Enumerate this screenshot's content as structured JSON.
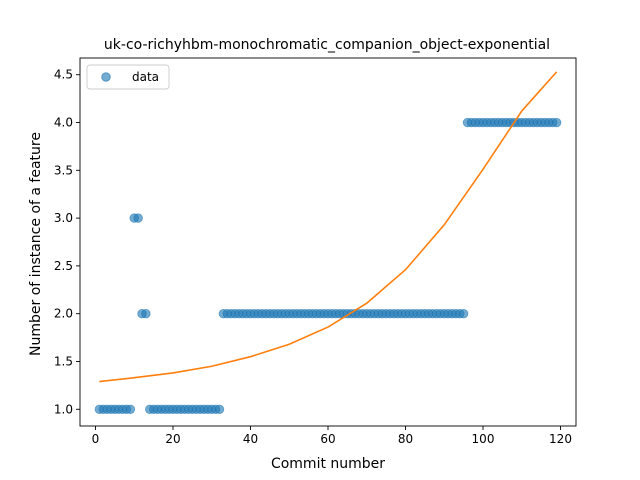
{
  "chart_data": {
    "type": "scatter",
    "title": "uk-co-richyhbm-monochromatic_companion_object-exponential",
    "xlabel": "Commit number",
    "ylabel": "Number of instance of a feature",
    "xlim": [
      -4,
      124
    ],
    "ylim": [
      0.825,
      4.675
    ],
    "xticks": [
      0,
      20,
      40,
      60,
      80,
      100,
      120
    ],
    "yticks": [
      1.0,
      1.5,
      2.0,
      2.5,
      3.0,
      3.5,
      4.0,
      4.5
    ],
    "xtick_labels": [
      "0",
      "20",
      "40",
      "60",
      "80",
      "100",
      "120"
    ],
    "ytick_labels": [
      "1.0",
      "1.5",
      "2.0",
      "2.5",
      "3.0",
      "3.5",
      "4.0",
      "4.5"
    ],
    "legend": {
      "position": "top-left",
      "entries": [
        "data"
      ]
    },
    "grid": false,
    "colors": {
      "data": "#1f77b4",
      "fit": "#ff7f0e"
    },
    "series": [
      {
        "name": "data",
        "kind": "scatter",
        "x": [
          1,
          2,
          3,
          4,
          5,
          6,
          7,
          8,
          9,
          10,
          11,
          12,
          13,
          14,
          15,
          16,
          17,
          18,
          19,
          20,
          21,
          22,
          23,
          24,
          25,
          26,
          27,
          28,
          29,
          30,
          31,
          32,
          33,
          34,
          35,
          36,
          37,
          38,
          39,
          40,
          41,
          42,
          43,
          44,
          45,
          46,
          47,
          48,
          49,
          50,
          51,
          52,
          53,
          54,
          55,
          56,
          57,
          58,
          59,
          60,
          61,
          62,
          63,
          64,
          65,
          66,
          67,
          68,
          69,
          70,
          71,
          72,
          73,
          74,
          75,
          76,
          77,
          78,
          79,
          80,
          81,
          82,
          83,
          84,
          85,
          86,
          87,
          88,
          89,
          90,
          91,
          92,
          93,
          94,
          95,
          96,
          97,
          98,
          99,
          100,
          101,
          102,
          103,
          104,
          105,
          106,
          107,
          108,
          109,
          110,
          111,
          112,
          113,
          114,
          115,
          116,
          117,
          118,
          119
        ],
        "y": [
          1,
          1,
          1,
          1,
          1,
          1,
          1,
          1,
          1,
          3,
          3,
          2,
          2,
          1,
          1,
          1,
          1,
          1,
          1,
          1,
          1,
          1,
          1,
          1,
          1,
          1,
          1,
          1,
          1,
          1,
          1,
          1,
          2,
          2,
          2,
          2,
          2,
          2,
          2,
          2,
          2,
          2,
          2,
          2,
          2,
          2,
          2,
          2,
          2,
          2,
          2,
          2,
          2,
          2,
          2,
          2,
          2,
          2,
          2,
          2,
          2,
          2,
          2,
          2,
          2,
          2,
          2,
          2,
          2,
          2,
          2,
          2,
          2,
          2,
          2,
          2,
          2,
          2,
          2,
          2,
          2,
          2,
          2,
          2,
          2,
          2,
          2,
          2,
          2,
          2,
          2,
          2,
          2,
          2,
          2,
          4,
          4,
          4,
          4,
          4,
          4,
          4,
          4,
          4,
          4,
          4,
          4,
          4,
          4,
          4,
          4,
          4,
          4,
          4,
          4,
          4,
          4,
          4,
          4
        ]
      },
      {
        "kind": "line",
        "x": [
          1,
          10,
          20,
          30,
          40,
          50,
          60,
          70,
          80,
          90,
          100,
          110,
          119
        ],
        "y": [
          1.29,
          1.33,
          1.38,
          1.45,
          1.55,
          1.68,
          1.86,
          2.11,
          2.46,
          2.93,
          3.51,
          4.12,
          4.53
        ]
      }
    ]
  }
}
